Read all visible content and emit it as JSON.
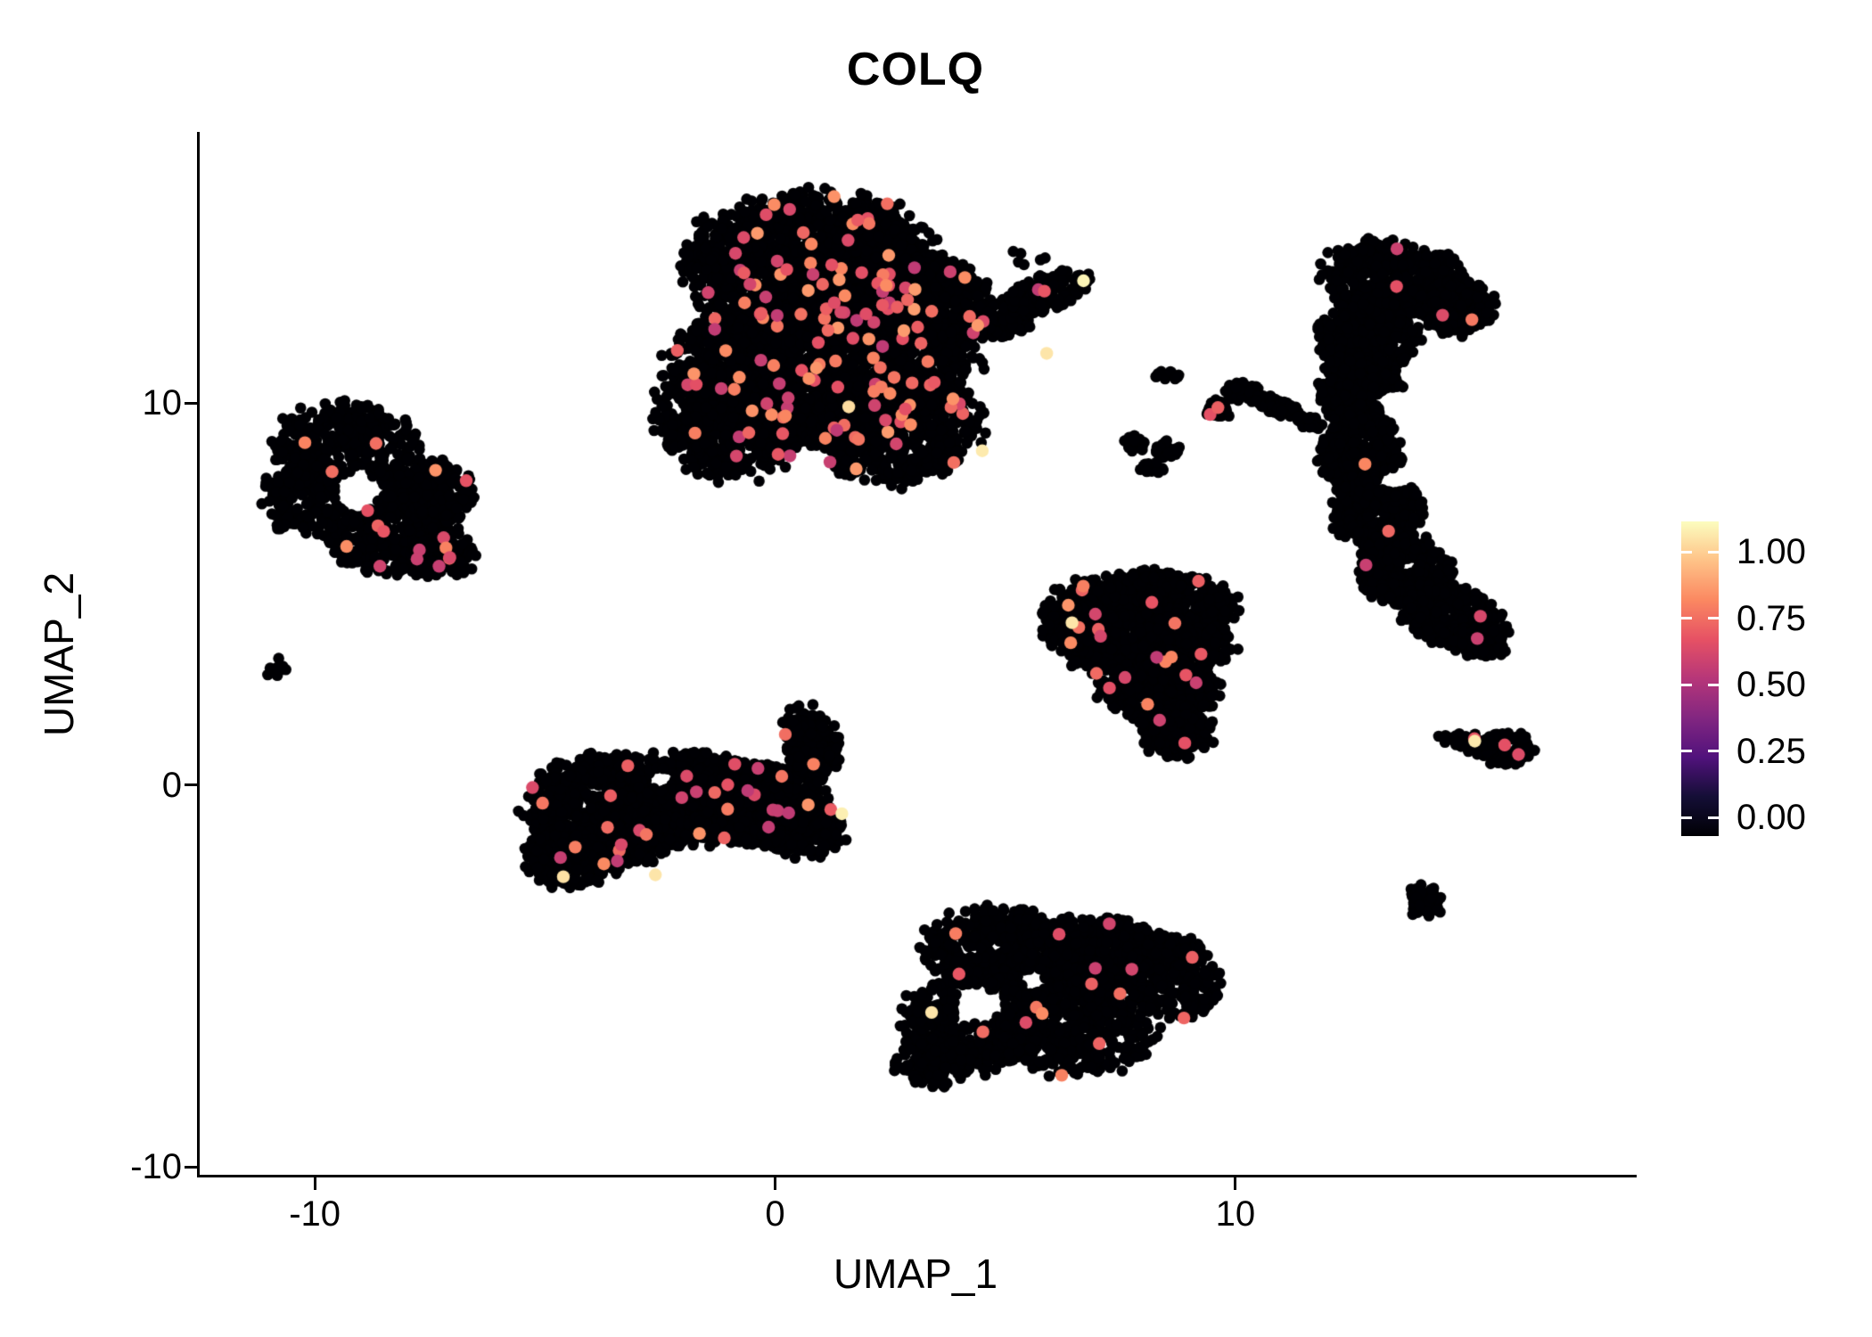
{
  "title": "COLQ",
  "axes": {
    "x": {
      "label": "UMAP_1",
      "ticks": [
        {
          "label": "-10",
          "value": -10
        },
        {
          "label": "0",
          "value": 0
        },
        {
          "label": "10",
          "value": 10
        }
      ]
    },
    "y": {
      "label": "UMAP_2",
      "ticks": [
        {
          "label": "10",
          "value": 10
        },
        {
          "label": "0",
          "value": 0
        },
        {
          "label": "-10",
          "value": -10
        }
      ]
    }
  },
  "legend": {
    "position": "right",
    "entries": [
      {
        "label": "1.00",
        "value": 1.0
      },
      {
        "label": "0.75",
        "value": 0.75
      },
      {
        "label": "0.50",
        "value": 0.5
      },
      {
        "label": "0.25",
        "value": 0.25
      },
      {
        "label": "0.00",
        "value": 0.0
      }
    ]
  },
  "colormap": [
    {
      "t": 0.0,
      "color": "#000004"
    },
    {
      "t": 0.125,
      "color": "#140e36"
    },
    {
      "t": 0.25,
      "color": "#51127c"
    },
    {
      "t": 0.375,
      "color": "#822681"
    },
    {
      "t": 0.5,
      "color": "#b63679"
    },
    {
      "t": 0.625,
      "color": "#e65164"
    },
    {
      "t": 0.75,
      "color": "#fb8861"
    },
    {
      "t": 0.875,
      "color": "#fec287"
    },
    {
      "t": 1.0,
      "color": "#fcfdbf"
    }
  ],
  "chart_data": {
    "type": "scatter",
    "title": "COLQ",
    "xlabel": "UMAP_1",
    "ylabel": "UMAP_2",
    "xlim": [
      -12.5,
      18.6
    ],
    "ylim": [
      -10.2,
      17.05
    ],
    "x_ticks": [
      -10,
      0,
      10
    ],
    "y_ticks": [
      -10,
      0,
      10
    ],
    "grid": false,
    "legend_position": "right",
    "color_scale": {
      "name": "magma",
      "domain": [
        0,
        1
      ],
      "breaks": [
        0,
        0.25,
        0.5,
        0.75,
        1
      ]
    },
    "point_radius": 6.3,
    "accent_radius": 7.2,
    "clusters": [
      {
        "name": "cluster-top-center",
        "blobs": [
          {
            "x": 0.8,
            "y": 13.6,
            "rx": 2.7,
            "ry": 1.9,
            "n": 1600
          },
          {
            "x": 1.0,
            "y": 11.0,
            "rx": 3.2,
            "ry": 2.0,
            "n": 2000
          },
          {
            "x": -0.9,
            "y": 9.6,
            "rx": 1.7,
            "ry": 1.6,
            "n": 600
          },
          {
            "x": 2.6,
            "y": 9.4,
            "rx": 1.8,
            "ry": 1.5,
            "n": 650
          },
          {
            "x": 3.4,
            "y": 12.7,
            "rx": 1.2,
            "ry": 1.1,
            "n": 400
          },
          {
            "x": 4.9,
            "y": 12.2,
            "rx": 0.9,
            "ry": 0.5,
            "rot": 25,
            "n": 180
          },
          {
            "x": 5.9,
            "y": 12.9,
            "rx": 1.0,
            "ry": 0.45,
            "rot": 22,
            "n": 160
          },
          {
            "x": 5.5,
            "y": 13.9,
            "rx": 0.5,
            "ry": 0.3,
            "n": 6
          }
        ],
        "holes": [],
        "accents": {
          "n": 150,
          "vmin": 0.52,
          "vmax": 0.8
        },
        "lights": [
          [
            6.7,
            13.2,
            0.98
          ],
          [
            5.9,
            11.3,
            0.95
          ],
          [
            4.5,
            8.75,
            0.96
          ],
          [
            1.6,
            9.9,
            0.93
          ]
        ]
      },
      {
        "name": "cluster-left",
        "blobs": [
          {
            "x": -9.3,
            "y": 8.7,
            "rx": 1.6,
            "ry": 1.3,
            "n": 420
          },
          {
            "x": -8.3,
            "y": 6.7,
            "rx": 1.5,
            "ry": 1.2,
            "n": 400
          },
          {
            "x": -10.2,
            "y": 7.6,
            "rx": 0.9,
            "ry": 1.0,
            "n": 170
          },
          {
            "x": -7.4,
            "y": 7.7,
            "rx": 0.8,
            "ry": 0.9,
            "n": 150
          },
          {
            "x": -7.2,
            "y": 6.0,
            "rx": 0.7,
            "ry": 0.6,
            "n": 90
          }
        ],
        "holes": [
          {
            "x": -9.05,
            "y": 7.7,
            "r": 0.55
          }
        ],
        "accents": {
          "n": 17,
          "vmin": 0.52,
          "vmax": 0.78
        },
        "lights": []
      },
      {
        "name": "cluster-tiny-left",
        "blobs": [
          {
            "x": -10.85,
            "y": 3.05,
            "rx": 0.22,
            "ry": 0.26,
            "n": 10
          }
        ],
        "holes": [],
        "accents": {
          "n": 0
        },
        "lights": []
      },
      {
        "name": "cluster-center-left",
        "blobs": [
          {
            "x": -3.6,
            "y": -0.7,
            "rx": 1.8,
            "ry": 1.5,
            "n": 850
          },
          {
            "x": -1.8,
            "y": -0.3,
            "rx": 1.7,
            "ry": 1.2,
            "n": 750
          },
          {
            "x": -0.3,
            "y": -0.5,
            "rx": 1.5,
            "ry": 1.1,
            "n": 550
          },
          {
            "x": 0.8,
            "y": 1.1,
            "rx": 0.6,
            "ry": 1.0,
            "rot": 12,
            "n": 190
          },
          {
            "x": 0.6,
            "y": -1.2,
            "rx": 0.9,
            "ry": 0.7,
            "n": 220
          },
          {
            "x": -4.5,
            "y": -1.9,
            "rx": 0.9,
            "ry": 0.8,
            "n": 220
          }
        ],
        "holes": [
          {
            "x": -2.5,
            "y": 0.15,
            "r": 0.3
          }
        ],
        "accents": {
          "n": 34,
          "vmin": 0.52,
          "vmax": 0.78
        },
        "lights": [
          [
            -2.6,
            -2.35,
            0.95
          ],
          [
            1.45,
            -0.75,
            0.97
          ],
          [
            -4.6,
            -2.4,
            0.94
          ]
        ]
      },
      {
        "name": "cluster-center-right",
        "blobs": [
          {
            "x": 8.0,
            "y": 4.7,
            "rx": 2.0,
            "ry": 0.9,
            "n": 640
          },
          {
            "x": 8.1,
            "y": 3.6,
            "rx": 1.8,
            "ry": 0.9,
            "n": 580
          },
          {
            "x": 8.3,
            "y": 2.5,
            "rx": 1.3,
            "ry": 0.8,
            "n": 360
          },
          {
            "x": 8.7,
            "y": 1.4,
            "rx": 0.8,
            "ry": 0.7,
            "n": 170
          },
          {
            "x": 6.4,
            "y": 4.2,
            "rx": 0.65,
            "ry": 0.7,
            "n": 130
          }
        ],
        "holes": [],
        "accents": {
          "n": 22,
          "vmin": 0.52,
          "vmax": 0.78,
          "fixed": [
            [
              8.9,
              1.1,
              0.62
            ]
          ]
        },
        "lights": [
          [
            6.45,
            4.25,
            0.95
          ]
        ]
      },
      {
        "name": "cluster-bottom-center",
        "blobs": [
          {
            "x": 4.9,
            "y": -4.3,
            "rx": 1.7,
            "ry": 1.1,
            "n": 500
          },
          {
            "x": 7.0,
            "y": -4.4,
            "rx": 1.6,
            "ry": 1.0,
            "n": 460
          },
          {
            "x": 4.3,
            "y": -6.2,
            "rx": 1.5,
            "ry": 1.3,
            "n": 460
          },
          {
            "x": 6.5,
            "y": -6.3,
            "rx": 1.8,
            "ry": 1.3,
            "n": 500
          },
          {
            "x": 8.7,
            "y": -5.0,
            "rx": 1.0,
            "ry": 1.1,
            "n": 230
          },
          {
            "x": 3.4,
            "y": -7.2,
            "rx": 0.8,
            "ry": 0.7,
            "n": 130
          }
        ],
        "holes": [
          {
            "x": 4.4,
            "y": -5.75,
            "r": 0.55
          },
          {
            "x": 5.6,
            "y": -5.1,
            "r": 0.3
          }
        ],
        "accents": {
          "n": 16,
          "vmin": 0.52,
          "vmax": 0.78
        },
        "lights": [
          [
            3.4,
            -5.95,
            0.95
          ]
        ]
      },
      {
        "name": "cluster-right-tall",
        "blobs": [
          {
            "x": 13.5,
            "y": 13.2,
            "rx": 1.6,
            "ry": 1.0,
            "rot": -12,
            "n": 500
          },
          {
            "x": 14.8,
            "y": 12.5,
            "rx": 0.8,
            "ry": 0.7,
            "n": 200
          },
          {
            "x": 12.9,
            "y": 11.8,
            "rx": 1.1,
            "ry": 0.9,
            "n": 370
          },
          {
            "x": 12.7,
            "y": 10.3,
            "rx": 0.9,
            "ry": 1.0,
            "n": 350
          },
          {
            "x": 12.7,
            "y": 8.7,
            "rx": 0.9,
            "ry": 1.0,
            "n": 350
          },
          {
            "x": 13.1,
            "y": 7.1,
            "rx": 1.0,
            "ry": 1.0,
            "n": 350
          },
          {
            "x": 13.7,
            "y": 5.6,
            "rx": 1.1,
            "ry": 0.9,
            "rot": -30,
            "n": 330
          },
          {
            "x": 14.7,
            "y": 4.4,
            "rx": 1.2,
            "ry": 0.8,
            "rot": -30,
            "n": 300
          },
          {
            "x": 15.3,
            "y": 3.8,
            "rx": 0.6,
            "ry": 0.45,
            "rot": -20,
            "n": 120
          }
        ],
        "holes": [
          {
            "x": 13.5,
            "y": 10.0,
            "r": 0.4
          },
          {
            "x": 13.4,
            "y": 8.0,
            "r": 0.3
          }
        ],
        "accents": {
          "n": 7,
          "vmin": 0.52,
          "vmax": 0.75,
          "fixed": [
            [
              13.5,
              13.05,
              0.62
            ],
            [
              14.5,
              12.3,
              0.6
            ]
          ]
        },
        "lights": []
      },
      {
        "name": "cluster-small-streak",
        "blobs": [
          {
            "x": 9.6,
            "y": 9.85,
            "rx": 0.3,
            "ry": 0.25,
            "rot": -35,
            "n": 35
          },
          {
            "x": 10.2,
            "y": 10.25,
            "rx": 0.45,
            "ry": 0.25,
            "rot": -15,
            "n": 55
          },
          {
            "x": 10.9,
            "y": 9.95,
            "rx": 0.5,
            "ry": 0.27,
            "rot": -28,
            "n": 55
          },
          {
            "x": 11.6,
            "y": 9.5,
            "rx": 0.35,
            "ry": 0.2,
            "rot": -28,
            "n": 28
          }
        ],
        "holes": [],
        "accents": {
          "n": 0,
          "fixed": [
            [
              9.45,
              9.7,
              0.62
            ],
            [
              9.62,
              9.88,
              0.66
            ]
          ]
        },
        "lights": []
      },
      {
        "name": "cluster-small-pair",
        "blobs": [
          {
            "x": 7.8,
            "y": 8.95,
            "rx": 0.28,
            "ry": 0.22,
            "n": 22
          },
          {
            "x": 8.5,
            "y": 8.8,
            "rx": 0.3,
            "ry": 0.25,
            "n": 24
          },
          {
            "x": 8.2,
            "y": 8.3,
            "rx": 0.28,
            "ry": 0.18,
            "n": 15
          }
        ],
        "holes": [],
        "accents": {
          "n": 0
        },
        "lights": []
      },
      {
        "name": "cluster-tiny-mid",
        "blobs": [
          {
            "x": 8.5,
            "y": 10.75,
            "rx": 0.28,
            "ry": 0.18,
            "n": 13
          }
        ],
        "holes": [],
        "accents": {
          "n": 0
        },
        "lights": []
      },
      {
        "name": "cluster-small-right",
        "blobs": [
          {
            "x": 15.9,
            "y": 0.95,
            "rx": 0.6,
            "ry": 0.45,
            "rot": 10,
            "n": 75
          },
          {
            "x": 15.2,
            "y": 1.1,
            "rx": 0.5,
            "ry": 0.28,
            "rot": -10,
            "n": 38
          },
          {
            "x": 14.65,
            "y": 1.2,
            "rx": 0.28,
            "ry": 0.16,
            "rot": -10,
            "n": 13
          }
        ],
        "holes": [],
        "accents": {
          "n": 1,
          "vmin": 0.55,
          "vmax": 0.7,
          "fixed": [
            [
              15.85,
              1.05,
              0.62
            ],
            [
              16.15,
              0.8,
              0.6
            ]
          ]
        },
        "lights": [
          [
            15.2,
            1.15,
            0.96
          ]
        ]
      },
      {
        "name": "cluster-small-round",
        "blobs": [
          {
            "x": 14.1,
            "y": -3.05,
            "rx": 0.42,
            "ry": 0.45,
            "n": 55
          }
        ],
        "holes": [],
        "accents": {
          "n": 0
        },
        "lights": []
      }
    ]
  }
}
